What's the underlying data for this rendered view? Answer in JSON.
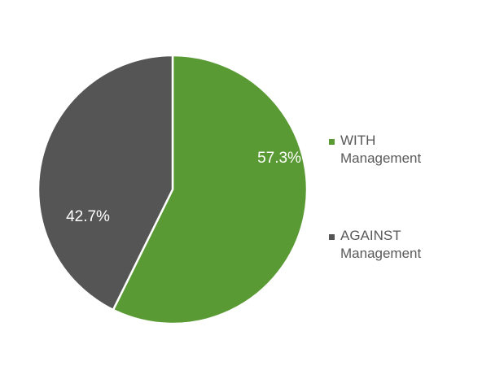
{
  "chart_data": {
    "type": "pie",
    "categories": [
      "WITH Management",
      "AGAINST Management"
    ],
    "values": [
      57.3,
      42.7
    ],
    "labels": [
      "57.3%",
      "42.7%"
    ],
    "colors": [
      "#5a9a34",
      "#555555"
    ],
    "title": "",
    "legend_position": "right"
  },
  "legend": {
    "items": [
      {
        "label": "WITH Management",
        "color": "#5a9a34"
      },
      {
        "label": "AGAINST Management",
        "color": "#555555"
      }
    ]
  }
}
